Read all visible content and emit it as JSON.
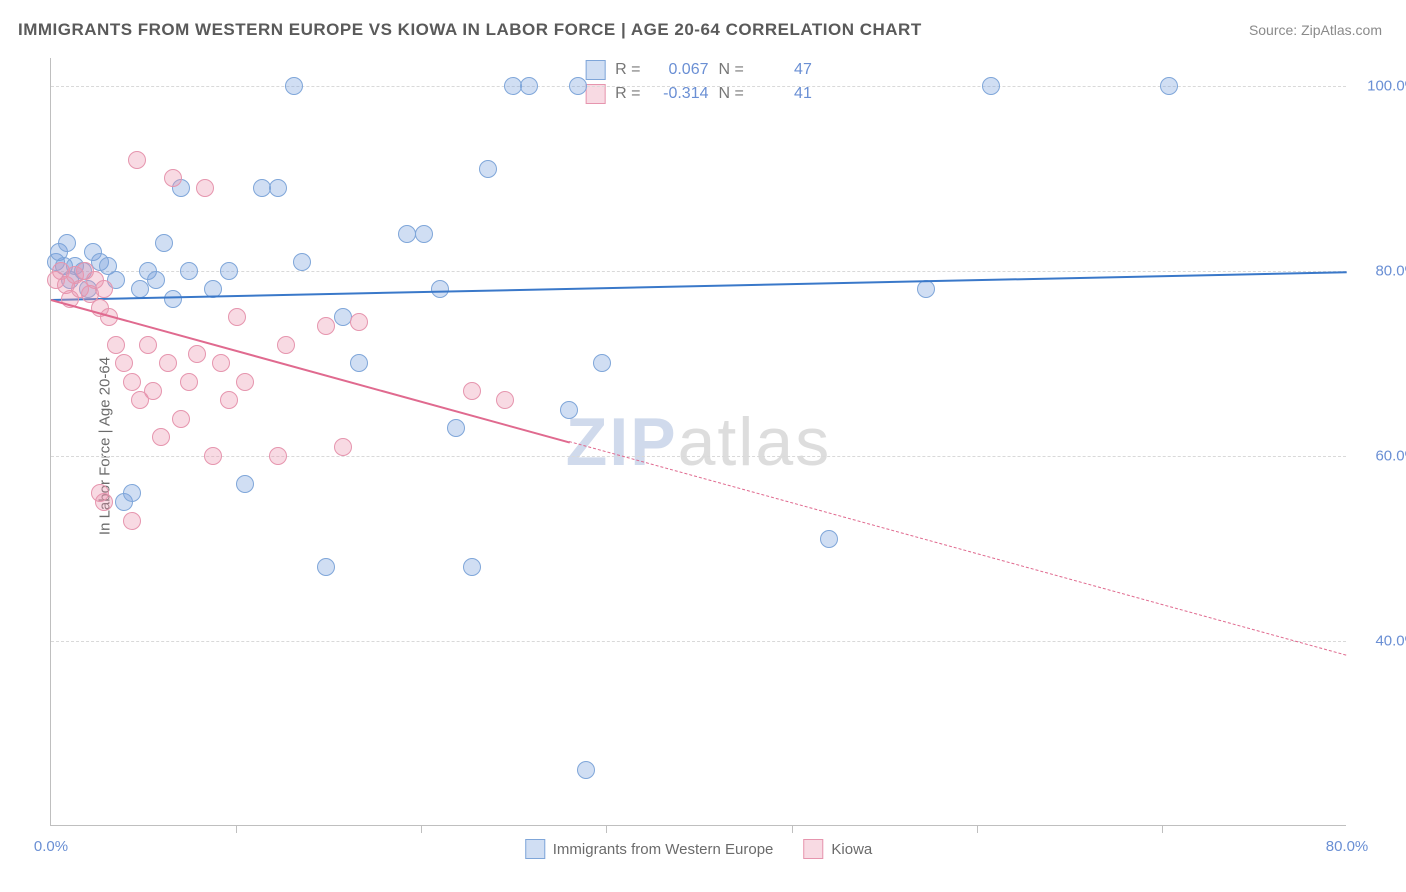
{
  "title": "IMMIGRANTS FROM WESTERN EUROPE VS KIOWA IN LABOR FORCE | AGE 20-64 CORRELATION CHART",
  "source": "Source: ZipAtlas.com",
  "yaxis_title": "In Labor Force | Age 20-64",
  "watermark": {
    "part1": "ZIP",
    "part2": "atlas"
  },
  "chart": {
    "type": "scatter",
    "background_color": "#ffffff",
    "grid_color": "#d9d9d9",
    "axis_color": "#bfbfbf",
    "xlim": [
      0,
      80
    ],
    "ylim": [
      20,
      103
    ],
    "ytick_values": [
      40,
      60,
      80,
      100
    ],
    "ytick_labels": [
      "40.0%",
      "60.0%",
      "80.0%",
      "100.0%"
    ],
    "xtick_values": [
      0,
      80
    ],
    "xtick_labels": [
      "0.0%",
      "80.0%"
    ],
    "x_minor_grid": [
      11.43,
      22.86,
      34.29,
      45.71,
      57.14,
      68.57
    ],
    "series": [
      {
        "name": "Immigrants from Western Europe",
        "marker_color_fill": "rgba(120,160,220,0.35)",
        "marker_color_stroke": "#7fa6d9",
        "marker_radius": 9,
        "line_color": "#3a78c9",
        "R": "0.067",
        "N": "47",
        "trend": {
          "x1": 0,
          "y1": 77,
          "x2": 80,
          "y2": 80,
          "solid_until_x": 80
        },
        "points": [
          [
            0.3,
            81
          ],
          [
            0.5,
            82
          ],
          [
            0.8,
            80.5
          ],
          [
            1.0,
            83
          ],
          [
            1.2,
            79
          ],
          [
            1.5,
            80.5
          ],
          [
            2.0,
            80
          ],
          [
            2.3,
            78
          ],
          [
            2.6,
            82
          ],
          [
            3.0,
            81
          ],
          [
            3.5,
            80.5
          ],
          [
            4.0,
            79
          ],
          [
            4.5,
            55
          ],
          [
            5.0,
            56
          ],
          [
            5.5,
            78
          ],
          [
            6.0,
            80
          ],
          [
            6.5,
            79
          ],
          [
            7.0,
            83
          ],
          [
            7.5,
            77
          ],
          [
            8.0,
            89
          ],
          [
            8.5,
            80
          ],
          [
            10,
            78
          ],
          [
            11,
            80
          ],
          [
            12,
            57
          ],
          [
            13,
            89
          ],
          [
            14,
            89
          ],
          [
            15,
            100
          ],
          [
            15.5,
            81
          ],
          [
            17,
            48
          ],
          [
            18,
            75
          ],
          [
            19,
            70
          ],
          [
            22,
            84
          ],
          [
            23,
            84
          ],
          [
            24,
            78
          ],
          [
            25,
            63
          ],
          [
            26,
            48
          ],
          [
            27,
            91
          ],
          [
            28.5,
            100
          ],
          [
            29.5,
            100
          ],
          [
            32,
            65
          ],
          [
            32.5,
            100
          ],
          [
            34,
            70
          ],
          [
            48,
            51
          ],
          [
            54,
            78
          ],
          [
            58,
            100
          ],
          [
            69,
            100
          ],
          [
            33,
            26
          ]
        ]
      },
      {
        "name": "Kiowa",
        "marker_color_fill": "rgba(235,150,175,0.35)",
        "marker_color_stroke": "#e695ae",
        "marker_radius": 9,
        "line_color": "#e06a8f",
        "R": "-0.314",
        "N": "41",
        "trend": {
          "x1": 0,
          "y1": 77,
          "x2": 80,
          "y2": 38.5,
          "solid_until_x": 32
        },
        "points": [
          [
            0.3,
            79
          ],
          [
            0.6,
            80
          ],
          [
            0.9,
            78.5
          ],
          [
            1.2,
            77
          ],
          [
            1.5,
            79.5
          ],
          [
            1.8,
            78
          ],
          [
            2.1,
            80
          ],
          [
            2.4,
            77.5
          ],
          [
            2.7,
            79
          ],
          [
            3.0,
            76
          ],
          [
            3.3,
            78
          ],
          [
            3.6,
            75
          ],
          [
            4.0,
            72
          ],
          [
            3.0,
            56
          ],
          [
            3.3,
            55
          ],
          [
            4.5,
            70
          ],
          [
            5.0,
            68
          ],
          [
            5.3,
            92
          ],
          [
            5.0,
            53
          ],
          [
            5.5,
            66
          ],
          [
            6.0,
            72
          ],
          [
            6.3,
            67
          ],
          [
            6.8,
            62
          ],
          [
            7.2,
            70
          ],
          [
            7.5,
            90
          ],
          [
            8.0,
            64
          ],
          [
            8.5,
            68
          ],
          [
            9.0,
            71
          ],
          [
            9.5,
            89
          ],
          [
            10.0,
            60
          ],
          [
            10.5,
            70
          ],
          [
            11.0,
            66
          ],
          [
            11.5,
            75
          ],
          [
            12.0,
            68
          ],
          [
            14.0,
            60
          ],
          [
            14.5,
            72
          ],
          [
            17.0,
            74
          ],
          [
            18.0,
            61
          ],
          [
            19.0,
            74.5
          ],
          [
            26.0,
            67
          ],
          [
            28.0,
            66
          ]
        ]
      }
    ]
  },
  "legend_bottom": {
    "items": [
      "Immigrants from Western Europe",
      "Kiowa"
    ]
  },
  "legend_top": {
    "r_label": "R =",
    "n_label": "N ="
  }
}
